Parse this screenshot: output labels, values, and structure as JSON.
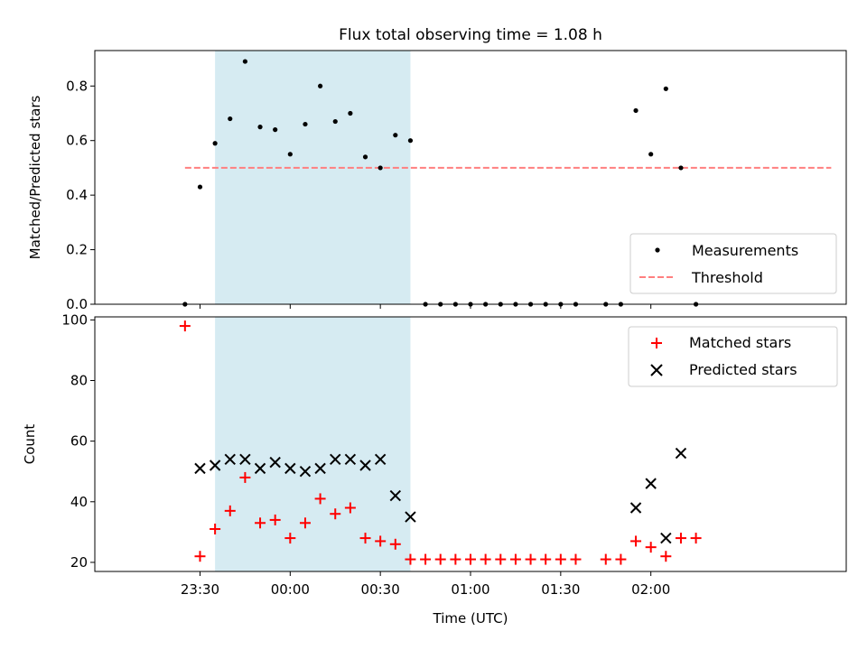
{
  "chart_data": {
    "title": "Flux total observing time = 1.08 h",
    "type": "scatter",
    "xlabel": "Time (UTC)",
    "x_ticks": [
      "23:30",
      "00:00",
      "00:30",
      "01:00",
      "01:30",
      "02:00"
    ],
    "x_range_minutes": [
      -65,
      185
    ],
    "observing_window_minutes": [
      -25,
      40
    ],
    "window_color": "#add8e6",
    "top": {
      "ylabel": "Matched/Predicted stars",
      "ylim": [
        0,
        0.93
      ],
      "y_ticks": [
        "0.0",
        "0.2",
        "0.4",
        "0.6",
        "0.8"
      ],
      "y_tick_values": [
        0,
        0.2,
        0.4,
        0.6,
        0.8
      ],
      "threshold": {
        "name": "Threshold",
        "value": 0.5,
        "x_from": -35,
        "x_to": 180,
        "color": "#ff7f7f"
      },
      "legend": {
        "placement": "lower right",
        "entries": [
          "Measurements",
          "Threshold"
        ]
      },
      "measurements": {
        "name": "Measurements",
        "color": "#000000",
        "x": [
          -35,
          -30,
          -25,
          -20,
          -15,
          -10,
          -5,
          0,
          5,
          10,
          15,
          20,
          25,
          30,
          35,
          40,
          45,
          50,
          55,
          60,
          65,
          70,
          75,
          80,
          85,
          90,
          95,
          105,
          110,
          115,
          120,
          125,
          130,
          135
        ],
        "y": [
          0.0,
          0.43,
          0.59,
          0.68,
          0.89,
          0.65,
          0.64,
          0.55,
          0.66,
          0.8,
          0.67,
          0.7,
          0.54,
          0.5,
          0.62,
          0.6,
          0.0,
          0.0,
          0.0,
          0.0,
          0.0,
          0.0,
          0.0,
          0.0,
          0.0,
          0.0,
          0.0,
          0.0,
          0.0,
          0.71,
          0.55,
          0.79,
          0.5,
          0.0
        ]
      }
    },
    "bottom": {
      "ylabel": "Count",
      "ylim": [
        17,
        101
      ],
      "y_ticks": [
        "20",
        "40",
        "60",
        "80",
        "100"
      ],
      "y_tick_values": [
        20,
        40,
        60,
        80,
        100
      ],
      "legend": {
        "placement": "upper right",
        "entries": [
          "Matched stars",
          "Predicted stars"
        ]
      },
      "matched": {
        "name": "Matched stars",
        "color": "#ff0000",
        "x": [
          -35,
          -30,
          -25,
          -20,
          -15,
          -10,
          -5,
          0,
          5,
          10,
          15,
          20,
          25,
          30,
          35,
          40,
          45,
          50,
          55,
          60,
          65,
          70,
          75,
          80,
          85,
          90,
          95,
          105,
          110,
          115,
          120,
          125,
          130,
          135
        ],
        "y": [
          98,
          22,
          31,
          37,
          48,
          33,
          34,
          28,
          33,
          41,
          36,
          38,
          28,
          27,
          26,
          21,
          21,
          21,
          21,
          21,
          21,
          21,
          21,
          21,
          21,
          21,
          21,
          21,
          21,
          27,
          25,
          22,
          28,
          28
        ]
      },
      "predicted": {
        "name": "Predicted stars",
        "color": "#000000",
        "x": [
          -30,
          -25,
          -20,
          -15,
          -10,
          -5,
          0,
          5,
          10,
          15,
          20,
          25,
          30,
          35,
          40,
          115,
          120,
          125,
          130
        ],
        "y": [
          51,
          52,
          54,
          54,
          51,
          53,
          51,
          50,
          51,
          54,
          54,
          52,
          54,
          42,
          35,
          38,
          46,
          28,
          56
        ]
      }
    }
  }
}
